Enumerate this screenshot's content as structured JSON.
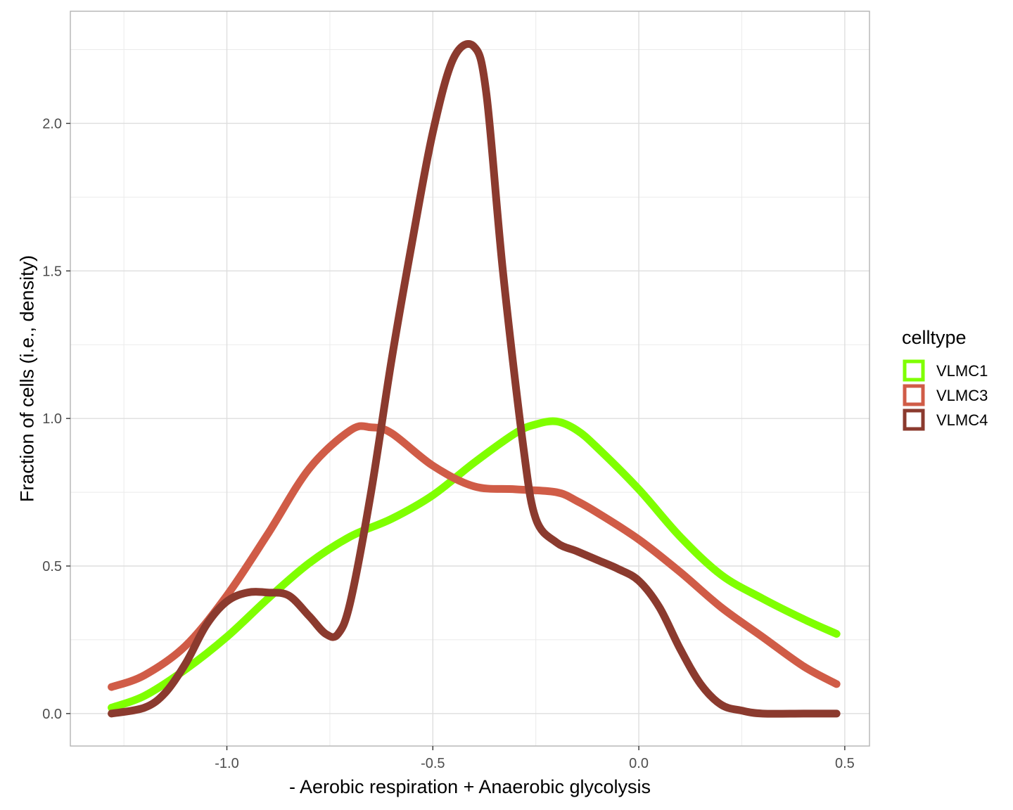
{
  "chart_data": {
    "type": "line",
    "xlabel": "- Aerobic respiration + Anaerobic glycolysis",
    "ylabel": "Fraction of cells (i.e., density)",
    "xlim": [
      -1.38,
      0.56
    ],
    "ylim": [
      -0.11,
      2.38
    ],
    "x_ticks": [
      -1.0,
      -0.5,
      0.0,
      0.5
    ],
    "x_tick_labels": [
      "-1.0",
      "-0.5",
      "0.0",
      "0.5"
    ],
    "y_ticks": [
      0.0,
      0.5,
      1.0,
      1.5,
      2.0
    ],
    "y_tick_labels": [
      "0.0",
      "0.5",
      "1.0",
      "1.5",
      "2.0"
    ],
    "grid": true,
    "legend": {
      "title": "celltype",
      "placement": "right"
    },
    "series": [
      {
        "name": "VLMC1",
        "color": "#7FFF00",
        "x": [
          -1.28,
          -1.2,
          -1.1,
          -1.0,
          -0.9,
          -0.8,
          -0.7,
          -0.6,
          -0.5,
          -0.4,
          -0.3,
          -0.25,
          -0.2,
          -0.15,
          -0.1,
          0.0,
          0.1,
          0.2,
          0.3,
          0.4,
          0.48
        ],
        "y": [
          0.02,
          0.06,
          0.15,
          0.26,
          0.39,
          0.51,
          0.6,
          0.66,
          0.74,
          0.85,
          0.95,
          0.98,
          0.99,
          0.96,
          0.9,
          0.76,
          0.6,
          0.47,
          0.39,
          0.32,
          0.27
        ]
      },
      {
        "name": "VLMC3",
        "color": "#D05C47",
        "x": [
          -1.28,
          -1.2,
          -1.1,
          -1.0,
          -0.9,
          -0.8,
          -0.7,
          -0.65,
          -0.6,
          -0.5,
          -0.4,
          -0.3,
          -0.2,
          -0.15,
          -0.1,
          0.0,
          0.1,
          0.2,
          0.3,
          0.4,
          0.48
        ],
        "y": [
          0.09,
          0.13,
          0.23,
          0.4,
          0.61,
          0.83,
          0.96,
          0.97,
          0.95,
          0.84,
          0.77,
          0.76,
          0.75,
          0.72,
          0.68,
          0.59,
          0.48,
          0.36,
          0.26,
          0.16,
          0.1
        ]
      },
      {
        "name": "VLMC4",
        "color": "#8B3A2E",
        "x": [
          -1.28,
          -1.2,
          -1.15,
          -1.1,
          -1.05,
          -1.0,
          -0.95,
          -0.9,
          -0.85,
          -0.8,
          -0.76,
          -0.73,
          -0.7,
          -0.65,
          -0.6,
          -0.55,
          -0.5,
          -0.45,
          -0.4,
          -0.37,
          -0.33,
          -0.28,
          -0.25,
          -0.2,
          -0.15,
          -0.1,
          -0.05,
          0.0,
          0.05,
          0.1,
          0.15,
          0.2,
          0.25,
          0.3,
          0.4,
          0.48
        ],
        "y": [
          0.0,
          0.02,
          0.07,
          0.17,
          0.3,
          0.38,
          0.41,
          0.41,
          0.4,
          0.33,
          0.27,
          0.27,
          0.38,
          0.75,
          1.2,
          1.6,
          1.97,
          2.22,
          2.26,
          2.1,
          1.5,
          0.9,
          0.66,
          0.58,
          0.55,
          0.52,
          0.49,
          0.45,
          0.36,
          0.22,
          0.1,
          0.03,
          0.01,
          0.0,
          0.0,
          0.0
        ]
      }
    ]
  }
}
